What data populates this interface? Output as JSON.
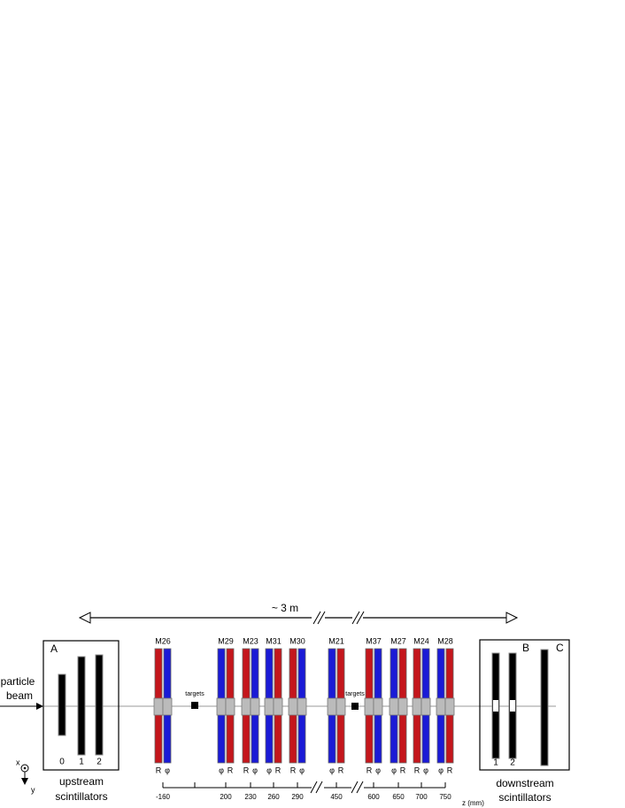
{
  "span_label": "~ 3 m",
  "beam": {
    "line1": "particle",
    "line2": "beam"
  },
  "upstream": {
    "box": "A",
    "bars": [
      "0",
      "1",
      "2"
    ],
    "caption": [
      "upstream",
      "scintillators"
    ]
  },
  "downstream": {
    "boxes": [
      "B",
      "C"
    ],
    "bars": [
      "1",
      "2"
    ],
    "caption": [
      "downstream",
      "scintillators"
    ]
  },
  "modules": [
    {
      "name": "M26",
      "planes": [
        "R",
        "φ"
      ]
    },
    {
      "name": "M29",
      "planes": [
        "φ",
        "R"
      ]
    },
    {
      "name": "M23",
      "planes": [
        "R",
        "φ"
      ]
    },
    {
      "name": "M31",
      "planes": [
        "φ",
        "R"
      ]
    },
    {
      "name": "M30",
      "planes": [
        "R",
        "φ"
      ]
    },
    {
      "name": "M21",
      "planes": [
        "φ",
        "R"
      ]
    },
    {
      "name": "M37",
      "planes": [
        "R",
        "φ"
      ]
    },
    {
      "name": "M27",
      "planes": [
        "φ",
        "R"
      ]
    },
    {
      "name": "M24",
      "planes": [
        "R",
        "φ"
      ]
    },
    {
      "name": "M28",
      "planes": [
        "φ",
        "R"
      ]
    }
  ],
  "targets": [
    "targets",
    "targets"
  ],
  "z_axis": {
    "ticks": [
      -160,
      200,
      230,
      260,
      290,
      450,
      600,
      650,
      700,
      750
    ],
    "label": "z (mm)"
  },
  "coords": {
    "x": "x",
    "y": "y"
  }
}
